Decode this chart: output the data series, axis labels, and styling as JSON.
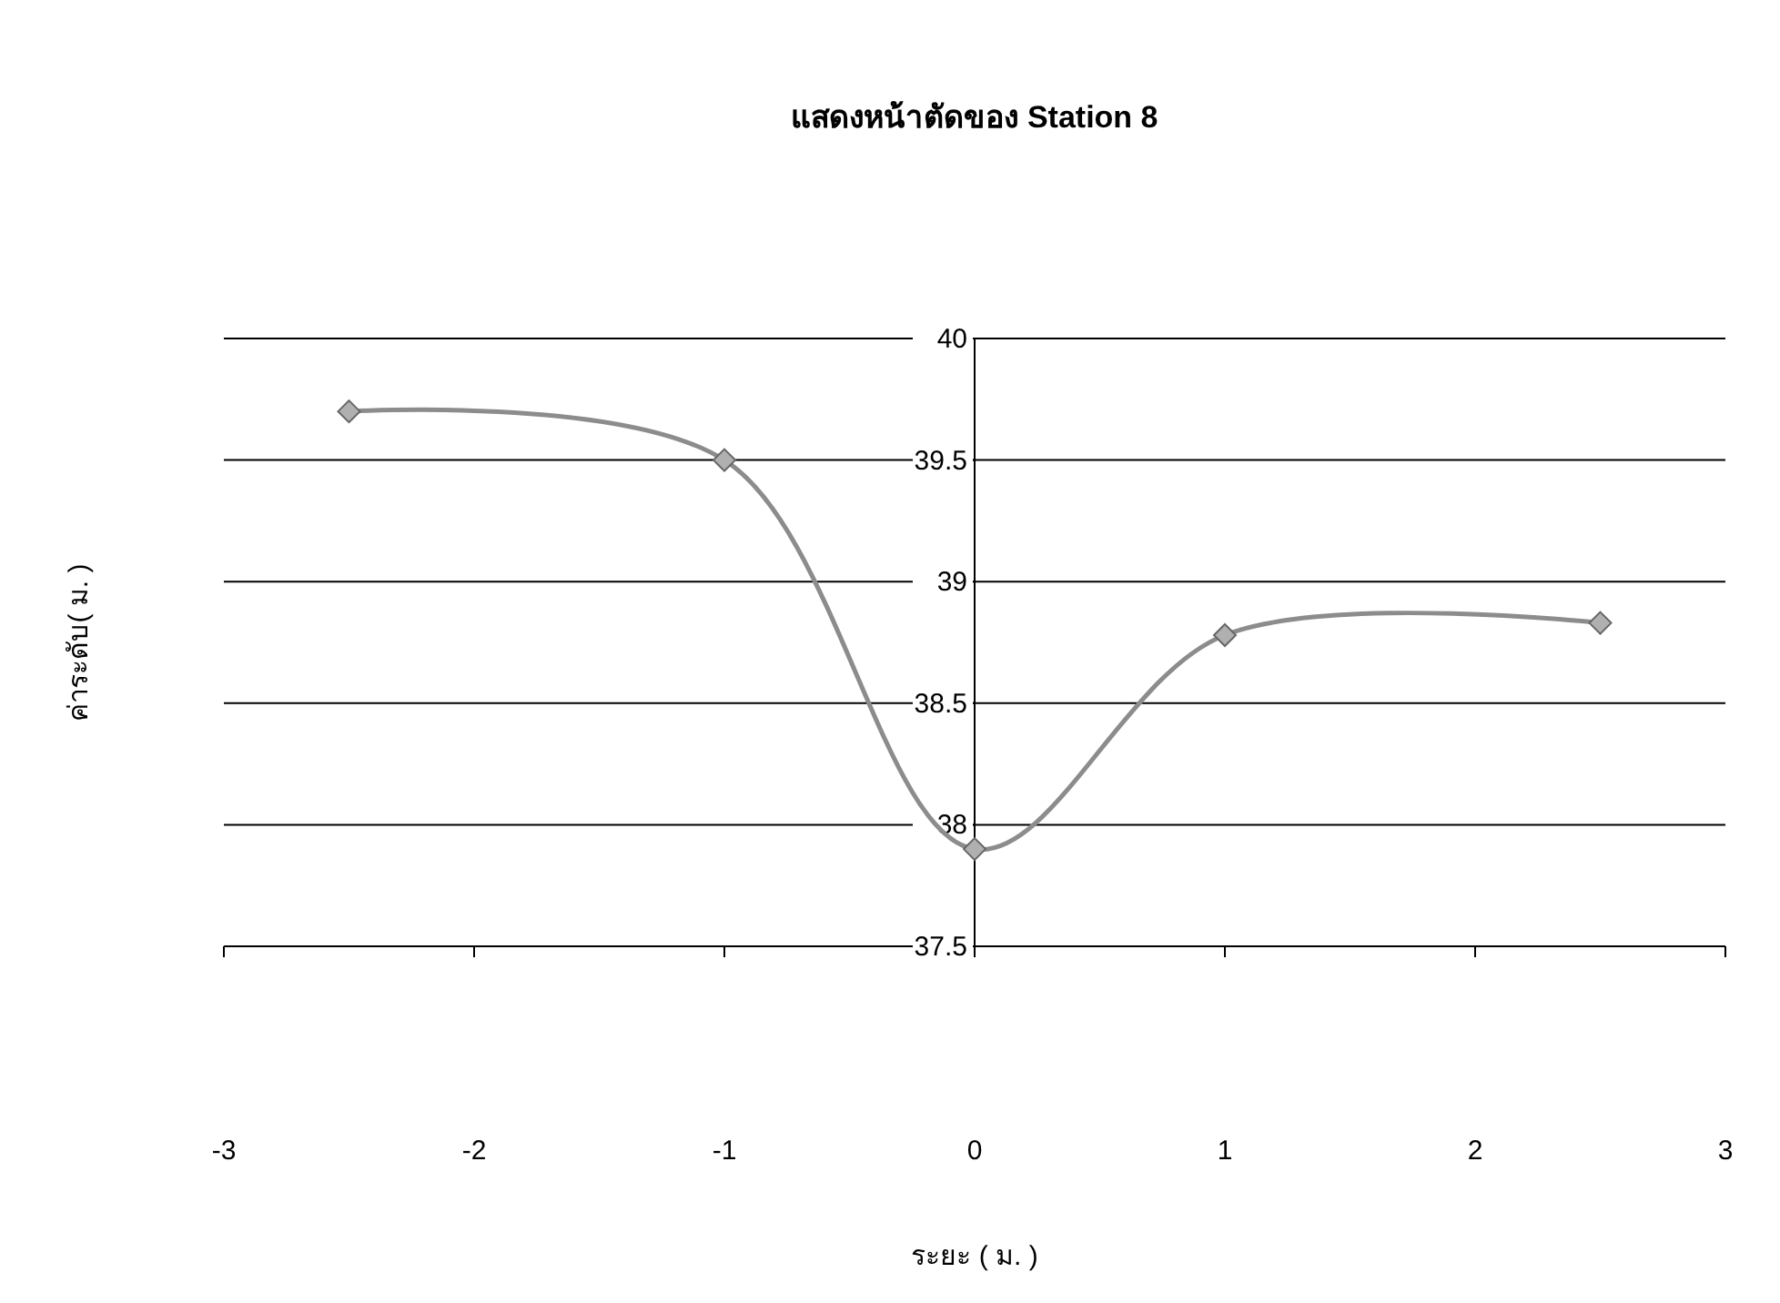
{
  "chart_data": {
    "type": "line",
    "title": "แสดงหน้าตัดของ Station 8",
    "xlabel": "ระยะ ( ม. )",
    "ylabel": "ค่าระดับ( ม. )",
    "x": [
      -2.5,
      -1,
      0,
      1,
      2.5
    ],
    "series": [
      {
        "color": "#8c8c8c",
        "values": [
          39.7,
          39.5,
          37.9,
          38.78,
          38.83
        ]
      }
    ],
    "xlim": [
      -3,
      3
    ],
    "xticks": [
      -3,
      -2,
      -1,
      0,
      1,
      2,
      3
    ],
    "ylim": [
      37.5,
      40
    ],
    "yticks": [
      37.5,
      38,
      38.5,
      39,
      39.5,
      40
    ],
    "grid": "y",
    "marker": "diamond",
    "line_style": "solid"
  }
}
